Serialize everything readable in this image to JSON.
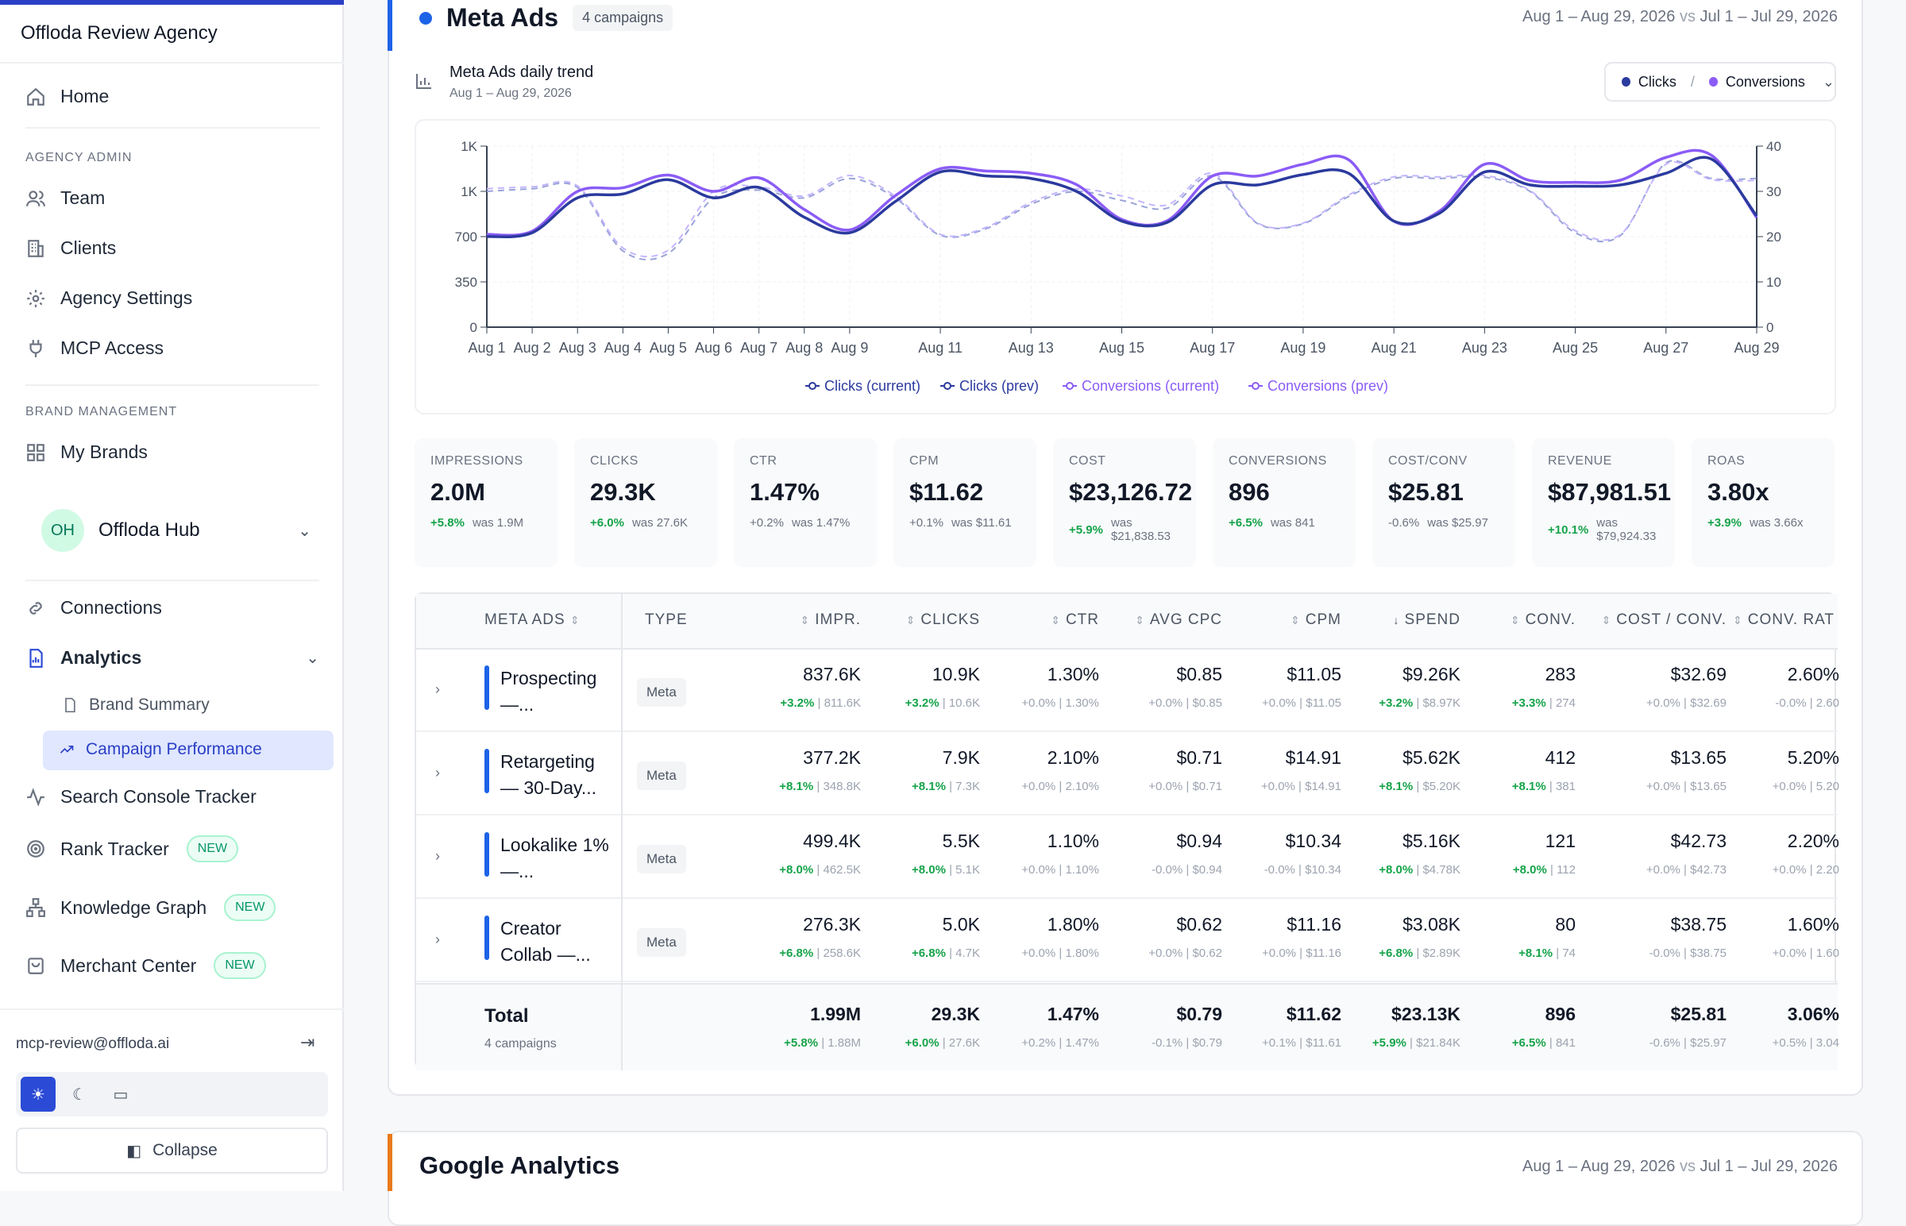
{
  "sidebar": {
    "agency": "Offloda Review Agency",
    "home": "Home",
    "section_admin": "AGENCY ADMIN",
    "team": "Team",
    "clients": "Clients",
    "agency_settings": "Agency Settings",
    "mcp_access": "MCP Access",
    "section_brand": "BRAND MANAGEMENT",
    "my_brands": "My Brands",
    "brand_initials": "OH",
    "brand_name": "Offloda Hub",
    "connections": "Connections",
    "analytics": "Analytics",
    "brand_summary": "Brand Summary",
    "campaign_performance": "Campaign Performance",
    "search_console": "Search Console Tracker",
    "rank_tracker": "Rank Tracker",
    "knowledge_graph": "Knowledge Graph",
    "merchant_center": "Merchant Center",
    "new_badge": "NEW",
    "email": "mcp-review@offloda.ai",
    "collapse": "Collapse"
  },
  "card": {
    "title": "Meta Ads",
    "campaign_count": "4 campaigns",
    "date_current": "Aug 1 – Aug 29, 2026",
    "vs": "vs",
    "date_prev": "Jul 1 – Jul 29, 2026"
  },
  "trend": {
    "title": "Meta Ads daily trend",
    "subtitle": "Aug 1 – Aug 29, 2026",
    "metric_a": "Clicks",
    "metric_sep": "/",
    "metric_b": "Conversions"
  },
  "colors": {
    "clicks": "#2b3a9e",
    "conversions": "#8b5cf6",
    "accent": "#1d63e8",
    "positive": "#16a34a"
  },
  "chart_data": {
    "type": "line",
    "x": [
      "Aug 1",
      "Aug 2",
      "Aug 3",
      "Aug 4",
      "Aug 5",
      "Aug 6",
      "Aug 7",
      "Aug 8",
      "Aug 9",
      "Aug 10",
      "Aug 11",
      "Aug 12",
      "Aug 13",
      "Aug 14",
      "Aug 15",
      "Aug 16",
      "Aug 17",
      "Aug 18",
      "Aug 19",
      "Aug 20",
      "Aug 21",
      "Aug 22",
      "Aug 23",
      "Aug 24",
      "Aug 25",
      "Aug 26",
      "Aug 27",
      "Aug 28",
      "Aug 29"
    ],
    "x_tick_labels": [
      "Aug 1",
      "Aug 2",
      "Aug 3",
      "Aug 4",
      "Aug 5",
      "Aug 6",
      "Aug 7",
      "Aug 8",
      "Aug 9",
      "Aug 11",
      "Aug 13",
      "Aug 15",
      "Aug 17",
      "Aug 19",
      "Aug 21",
      "Aug 23",
      "Aug 25",
      "Aug 27",
      "Aug 29"
    ],
    "y_left_ticks": [
      "0",
      "350",
      "700",
      "1K",
      "1K"
    ],
    "y_left_lim": [
      0,
      1400
    ],
    "y_right_ticks": [
      "0",
      "10",
      "20",
      "30",
      "40"
    ],
    "y_right_lim": [
      0,
      40
    ],
    "grid": true,
    "legend_position": "bottom",
    "series": [
      {
        "name": "Clicks (current)",
        "axis": "left",
        "style": "solid",
        "values": [
          700,
          730,
          1000,
          1030,
          1140,
          1000,
          1080,
          850,
          730,
          970,
          1200,
          1170,
          1150,
          1050,
          820,
          810,
          1100,
          1100,
          1180,
          1190,
          820,
          880,
          1200,
          1100,
          1090,
          1100,
          1190,
          1300,
          860
        ]
      },
      {
        "name": "Clicks (prev)",
        "axis": "left",
        "style": "dashed",
        "values": [
          1050,
          1070,
          1080,
          590,
          570,
          1000,
          1060,
          1000,
          1150,
          1000,
          710,
          760,
          950,
          1050,
          980,
          920,
          1170,
          800,
          800,
          1010,
          1150,
          1150,
          1160,
          1050,
          730,
          710,
          1270,
          1150,
          1150
        ]
      },
      {
        "name": "Conversions (current)",
        "axis": "right",
        "style": "solid",
        "values": [
          20.5,
          21.2,
          30,
          30.8,
          33.6,
          30,
          33,
          26,
          21.5,
          29,
          35,
          34.5,
          34,
          31.5,
          23.8,
          23.5,
          33.4,
          33.4,
          36,
          37,
          23.4,
          25.6,
          36,
          32.4,
          32,
          32.5,
          37.5,
          38,
          24.2
        ]
      },
      {
        "name": "Conversions (prev)",
        "axis": "right",
        "style": "dashed",
        "values": [
          30.6,
          31,
          31.2,
          17.5,
          17,
          30,
          31,
          29,
          33.5,
          29,
          20.5,
          22,
          27.6,
          30.5,
          29,
          27,
          34,
          23,
          23,
          29.2,
          33.2,
          33.2,
          33.5,
          30.2,
          21.3,
          20.5,
          36,
          32.6,
          32.4
        ]
      }
    ]
  },
  "kpis": [
    {
      "label": "IMPRESSIONS",
      "value": "2.0M",
      "pct": "+5.8%",
      "was": "was 1.9M",
      "positive": true
    },
    {
      "label": "CLICKS",
      "value": "29.3K",
      "pct": "+6.0%",
      "was": "was 27.6K",
      "positive": true
    },
    {
      "label": "CTR",
      "value": "1.47%",
      "pct": "+0.2%",
      "was": "was 1.47%",
      "positive": false
    },
    {
      "label": "CPM",
      "value": "$11.62",
      "pct": "+0.1%",
      "was": "was $11.61",
      "positive": false
    },
    {
      "label": "COST",
      "value": "$23,126.72",
      "pct": "+5.9%",
      "was": "was $21,838.53",
      "positive": true
    },
    {
      "label": "CONVERSIONS",
      "value": "896",
      "pct": "+6.5%",
      "was": "was 841",
      "positive": true
    },
    {
      "label": "COST/CONV",
      "value": "$25.81",
      "pct": "-0.6%",
      "was": "was $25.97",
      "positive": false
    },
    {
      "label": "REVENUE",
      "value": "$87,981.51",
      "pct": "+10.1%",
      "was": "was $79,924.33",
      "positive": true
    },
    {
      "label": "ROAS",
      "value": "3.80x",
      "pct": "+3.9%",
      "was": "was 3.66x",
      "positive": true
    }
  ],
  "table": {
    "headers": {
      "name": "META ADS",
      "type": "TYPE",
      "impr": "IMPR.",
      "clicks": "CLICKS",
      "ctr": "CTR",
      "avg_cpc": "AVG CPC",
      "cpm": "CPM",
      "spend": "SPEND",
      "conv": "CONV.",
      "cost_conv": "COST / CONV.",
      "conv_rate": "CONV. RAT"
    },
    "rows": [
      {
        "name": "Prospecting —...",
        "type": "Meta",
        "impr": [
          "837.6K",
          "+3.2%",
          "811.6K"
        ],
        "clicks": [
          "10.9K",
          "+3.2%",
          "10.6K"
        ],
        "ctr": [
          "1.30%",
          "+0.0%",
          "1.30%"
        ],
        "avg_cpc": [
          "$0.85",
          "+0.0%",
          "$0.85"
        ],
        "cpm": [
          "$11.05",
          "+0.0%",
          "$11.05"
        ],
        "spend": [
          "$9.26K",
          "+3.2%",
          "$8.97K"
        ],
        "conv": [
          "283",
          "+3.3%",
          "274"
        ],
        "cost_conv": [
          "$32.69",
          "+0.0%",
          "$32.69"
        ],
        "conv_rate": [
          "2.60%",
          "-0.0%",
          "2.60"
        ]
      },
      {
        "name": "Retargeting — 30-Day...",
        "type": "Meta",
        "impr": [
          "377.2K",
          "+8.1%",
          "348.8K"
        ],
        "clicks": [
          "7.9K",
          "+8.1%",
          "7.3K"
        ],
        "ctr": [
          "2.10%",
          "+0.0%",
          "2.10%"
        ],
        "avg_cpc": [
          "$0.71",
          "+0.0%",
          "$0.71"
        ],
        "cpm": [
          "$14.91",
          "+0.0%",
          "$14.91"
        ],
        "spend": [
          "$5.62K",
          "+8.1%",
          "$5.20K"
        ],
        "conv": [
          "412",
          "+8.1%",
          "381"
        ],
        "cost_conv": [
          "$13.65",
          "+0.0%",
          "$13.65"
        ],
        "conv_rate": [
          "5.20%",
          "+0.0%",
          "5.20"
        ]
      },
      {
        "name": "Lookalike 1% —...",
        "type": "Meta",
        "impr": [
          "499.4K",
          "+8.0%",
          "462.5K"
        ],
        "clicks": [
          "5.5K",
          "+8.0%",
          "5.1K"
        ],
        "ctr": [
          "1.10%",
          "+0.0%",
          "1.10%"
        ],
        "avg_cpc": [
          "$0.94",
          "-0.0%",
          "$0.94"
        ],
        "cpm": [
          "$10.34",
          "-0.0%",
          "$10.34"
        ],
        "spend": [
          "$5.16K",
          "+8.0%",
          "$4.78K"
        ],
        "conv": [
          "121",
          "+8.0%",
          "112"
        ],
        "cost_conv": [
          "$42.73",
          "+0.0%",
          "$42.73"
        ],
        "conv_rate": [
          "2.20%",
          "+0.0%",
          "2.20"
        ]
      },
      {
        "name": "Creator Collab —...",
        "type": "Meta",
        "impr": [
          "276.3K",
          "+6.8%",
          "258.6K"
        ],
        "clicks": [
          "5.0K",
          "+6.8%",
          "4.7K"
        ],
        "ctr": [
          "1.80%",
          "+0.0%",
          "1.80%"
        ],
        "avg_cpc": [
          "$0.62",
          "+0.0%",
          "$0.62"
        ],
        "cpm": [
          "$11.16",
          "+0.0%",
          "$11.16"
        ],
        "spend": [
          "$3.08K",
          "+6.8%",
          "$2.89K"
        ],
        "conv": [
          "80",
          "+8.1%",
          "74"
        ],
        "cost_conv": [
          "$38.75",
          "-0.0%",
          "$38.75"
        ],
        "conv_rate": [
          "1.60%",
          "+0.0%",
          "1.60"
        ]
      }
    ],
    "total": {
      "name": "Total",
      "sub": "4 campaigns",
      "impr": [
        "1.99M",
        "+5.8%",
        "1.88M"
      ],
      "clicks": [
        "29.3K",
        "+6.0%",
        "27.6K"
      ],
      "ctr": [
        "1.47%",
        "+0.2%",
        "1.47%"
      ],
      "avg_cpc": [
        "$0.79",
        "-0.1%",
        "$0.79"
      ],
      "cpm": [
        "$11.62",
        "+0.1%",
        "$11.61"
      ],
      "spend": [
        "$23.13K",
        "+5.9%",
        "$21.84K"
      ],
      "conv": [
        "896",
        "+6.5%",
        "841"
      ],
      "cost_conv": [
        "$25.81",
        "-0.6%",
        "$25.97"
      ],
      "conv_rate": [
        "3.06%",
        "+0.5%",
        "3.04"
      ]
    }
  },
  "card2": {
    "title": "Google Analytics",
    "date_current": "Aug 1 – Aug 29, 2026",
    "vs": "vs",
    "date_prev": "Jul 1 – Jul 29, 2026"
  }
}
